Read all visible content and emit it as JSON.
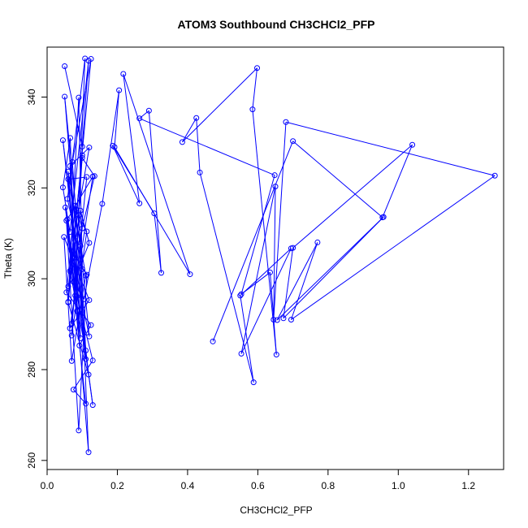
{
  "chart_data": {
    "type": "line",
    "title": "ATOM3 Southbound CH3CHCl2_PFP",
    "xlabel": "CH3CHCl2_PFP",
    "ylabel": "Theta (K)",
    "xlim": [
      0,
      1.3
    ],
    "ylim": [
      258,
      351
    ],
    "xticks": [
      "0.0",
      "0.2",
      "0.4",
      "0.6",
      "0.8",
      "1.0",
      "1.2"
    ],
    "yticks": [
      "260",
      "280",
      "300",
      "320",
      "340"
    ],
    "grid": false,
    "legend": "none",
    "series_color": "#0000ff",
    "marker": "open-circle",
    "points": [
      [
        0.05,
        346.8
      ],
      [
        0.1,
        329.1
      ],
      [
        0.118,
        348.0
      ],
      [
        0.065,
        310.3
      ],
      [
        0.045,
        320.1
      ],
      [
        0.066,
        331.0
      ],
      [
        0.08,
        296.3
      ],
      [
        0.108,
        348.5
      ],
      [
        0.058,
        317.6
      ],
      [
        0.1,
        302.1
      ],
      [
        0.09,
        339.9
      ],
      [
        0.06,
        294.9
      ],
      [
        0.125,
        348.4
      ],
      [
        0.072,
        325.7
      ],
      [
        0.11,
        282.3
      ],
      [
        0.05,
        340.1
      ],
      [
        0.082,
        315.3
      ],
      [
        0.113,
        310.4
      ],
      [
        0.07,
        287.5
      ],
      [
        0.1,
        327.2
      ],
      [
        0.06,
        294.8
      ],
      [
        0.118,
        278.9
      ],
      [
        0.045,
        330.5
      ],
      [
        0.08,
        308.4
      ],
      [
        0.095,
        286.9
      ],
      [
        0.058,
        313.1
      ],
      [
        0.13,
        322.5
      ],
      [
        0.065,
        289.1
      ],
      [
        0.12,
        295.3
      ],
      [
        0.048,
        309.2
      ],
      [
        0.07,
        281.9
      ],
      [
        0.11,
        300.7
      ],
      [
        0.06,
        323.6
      ],
      [
        0.085,
        296.1
      ],
      [
        0.13,
        282.0
      ],
      [
        0.075,
        275.6
      ],
      [
        0.11,
        272.5
      ],
      [
        0.055,
        312.8
      ],
      [
        0.09,
        266.6
      ],
      [
        0.113,
        300.9
      ],
      [
        0.07,
        306.1
      ],
      [
        0.12,
        328.9
      ],
      [
        0.065,
        324.8
      ],
      [
        0.092,
        285.3
      ],
      [
        0.125,
        289.8
      ],
      [
        0.055,
        297.0
      ],
      [
        0.08,
        316.1
      ],
      [
        0.1,
        311.1
      ],
      [
        0.07,
        290.1
      ],
      [
        0.113,
        322.4
      ],
      [
        0.06,
        321.9
      ],
      [
        0.095,
        307.2
      ],
      [
        0.12,
        287.3
      ],
      [
        0.075,
        304.5
      ],
      [
        0.13,
        272.2
      ],
      [
        0.052,
        315.7
      ],
      [
        0.085,
        292.9
      ],
      [
        0.118,
        261.8
      ],
      [
        0.09,
        314.0
      ],
      [
        0.11,
        284.2
      ],
      [
        0.065,
        301.7
      ],
      [
        0.1,
        326.6
      ],
      [
        0.135,
        322.6
      ],
      [
        0.06,
        298.3
      ],
      [
        0.095,
        315.0
      ],
      [
        0.12,
        307.9
      ],
      [
        0.075,
        299.3
      ],
      [
        0.105,
        295.5
      ],
      [
        0.157,
        316.5
      ],
      [
        0.205,
        341.5
      ],
      [
        0.192,
        329.0
      ],
      [
        0.407,
        301.0
      ],
      [
        0.217,
        345.1
      ],
      [
        0.263,
        316.6
      ],
      [
        0.187,
        329.3
      ],
      [
        0.305,
        314.4
      ],
      [
        0.325,
        301.3
      ],
      [
        0.29,
        337.0
      ],
      [
        0.263,
        335.3
      ],
      [
        0.648,
        322.8
      ],
      [
        0.553,
        296.6
      ],
      [
        0.635,
        301.4
      ],
      [
        0.653,
        283.3
      ],
      [
        0.585,
        337.3
      ],
      [
        0.598,
        346.4
      ],
      [
        0.385,
        330.1
      ],
      [
        0.425,
        335.4
      ],
      [
        0.435,
        323.4
      ],
      [
        0.588,
        277.2
      ],
      [
        0.55,
        296.3
      ],
      [
        0.695,
        306.7
      ],
      [
        0.553,
        283.5
      ],
      [
        0.65,
        320.3
      ],
      [
        0.645,
        291.0
      ],
      [
        0.68,
        334.5
      ],
      [
        1.275,
        322.7
      ],
      [
        0.695,
        291.0
      ],
      [
        0.77,
        308.0
      ],
      [
        0.655,
        290.9
      ],
      [
        0.958,
        313.6
      ],
      [
        0.673,
        291.3
      ],
      [
        0.7,
        306.8
      ],
      [
        1.04,
        329.5
      ],
      [
        0.955,
        313.5
      ],
      [
        0.7,
        330.3
      ],
      [
        0.472,
        286.2
      ]
    ]
  }
}
